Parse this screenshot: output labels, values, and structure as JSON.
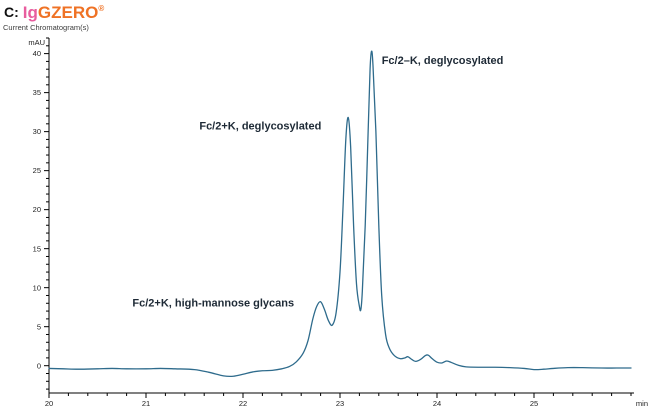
{
  "header": {
    "prefix": "C:",
    "brand_pink": "Ig",
    "brand_orange": "GZERO",
    "registered_mark": "®",
    "subtitle": "Current Chromatogram(s)"
  },
  "colors": {
    "brand_pink": "#e85d9e",
    "brand_orange": "#ef7225",
    "trace": "#2e6b8c",
    "axis": "#000000",
    "tick_label": "#222222",
    "annotation": "#1e2a36"
  },
  "chart_data": {
    "type": "line",
    "title": "Current Chromatogram(s)",
    "xlabel": "min",
    "ylabel": "mAU",
    "xlim": [
      20,
      26.0
    ],
    "ylim": [
      -3.5,
      42
    ],
    "x_major_ticks": [
      20,
      21,
      22,
      23,
      24,
      25
    ],
    "x_minor_step": 0.2,
    "y_major_ticks": [
      0,
      5,
      10,
      15,
      20,
      25,
      30,
      35,
      40
    ],
    "y_minor_step": 1,
    "grid": false,
    "legend": null,
    "series": [
      {
        "name": "Current Chromatogram",
        "points": [
          [
            20.0,
            -0.35
          ],
          [
            20.15,
            -0.4
          ],
          [
            20.3,
            -0.45
          ],
          [
            20.5,
            -0.4
          ],
          [
            20.65,
            -0.35
          ],
          [
            20.8,
            -0.4
          ],
          [
            21.0,
            -0.4
          ],
          [
            21.15,
            -0.35
          ],
          [
            21.3,
            -0.4
          ],
          [
            21.5,
            -0.5
          ],
          [
            21.65,
            -0.85
          ],
          [
            21.8,
            -1.3
          ],
          [
            21.9,
            -1.35
          ],
          [
            22.0,
            -1.1
          ],
          [
            22.1,
            -0.8
          ],
          [
            22.2,
            -0.65
          ],
          [
            22.3,
            -0.6
          ],
          [
            22.4,
            -0.4
          ],
          [
            22.48,
            -0.1
          ],
          [
            22.55,
            0.5
          ],
          [
            22.62,
            1.6
          ],
          [
            22.67,
            3.2
          ],
          [
            22.72,
            6.0
          ],
          [
            22.76,
            7.6
          ],
          [
            22.8,
            8.2
          ],
          [
            22.84,
            7.2
          ],
          [
            22.88,
            5.8
          ],
          [
            22.92,
            5.2
          ],
          [
            22.96,
            6.8
          ],
          [
            23.0,
            12.0
          ],
          [
            23.03,
            20.0
          ],
          [
            23.06,
            29.0
          ],
          [
            23.085,
            31.8
          ],
          [
            23.11,
            28.0
          ],
          [
            23.14,
            18.0
          ],
          [
            23.17,
            10.5
          ],
          [
            23.2,
            7.6
          ],
          [
            23.215,
            7.2
          ],
          [
            23.23,
            9.5
          ],
          [
            23.26,
            18.0
          ],
          [
            23.29,
            30.0
          ],
          [
            23.31,
            38.0
          ],
          [
            23.325,
            40.3
          ],
          [
            23.34,
            38.5
          ],
          [
            23.37,
            30.0
          ],
          [
            23.4,
            18.0
          ],
          [
            23.43,
            9.0
          ],
          [
            23.47,
            4.0
          ],
          [
            23.51,
            2.2
          ],
          [
            23.56,
            1.3
          ],
          [
            23.62,
            0.9
          ],
          [
            23.67,
            1.0
          ],
          [
            23.7,
            1.15
          ],
          [
            23.74,
            0.8
          ],
          [
            23.78,
            0.55
          ],
          [
            23.83,
            0.8
          ],
          [
            23.88,
            1.3
          ],
          [
            23.91,
            1.35
          ],
          [
            23.95,
            0.9
          ],
          [
            24.0,
            0.45
          ],
          [
            24.05,
            0.35
          ],
          [
            24.1,
            0.6
          ],
          [
            24.15,
            0.4
          ],
          [
            24.22,
            0.05
          ],
          [
            24.3,
            -0.15
          ],
          [
            24.45,
            -0.2
          ],
          [
            24.6,
            -0.2
          ],
          [
            24.75,
            -0.25
          ],
          [
            24.9,
            -0.35
          ],
          [
            25.0,
            -0.5
          ],
          [
            25.1,
            -0.45
          ],
          [
            25.2,
            -0.35
          ],
          [
            25.35,
            -0.25
          ],
          [
            25.5,
            -0.25
          ],
          [
            25.7,
            -0.3
          ],
          [
            25.85,
            -0.3
          ],
          [
            26.0,
            -0.3
          ]
        ]
      }
    ],
    "annotations": [
      {
        "label": "Fc/2–K, deglycosylated",
        "x": 23.43,
        "y": 39.2
      },
      {
        "label": "Fc/2+K, deglycosylated",
        "x": 21.55,
        "y": 30.8
      },
      {
        "label": "Fc/2+K, high-mannose glycans",
        "x": 20.86,
        "y": 8.1
      }
    ]
  }
}
